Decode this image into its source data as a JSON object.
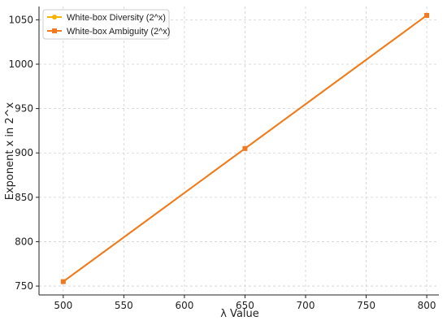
{
  "chart_data": {
    "type": "line",
    "title": "",
    "xlabel": "λ Value",
    "ylabel": "Exponent x in 2^x",
    "xlim": [
      480,
      810
    ],
    "ylim": [
      740,
      1065
    ],
    "xticks": [
      500,
      550,
      600,
      650,
      700,
      750,
      800
    ],
    "yticks": [
      750,
      800,
      850,
      900,
      950,
      1000,
      1050
    ],
    "grid": true,
    "legend_position": "top-left",
    "series": [
      {
        "name": "White-box Diversity (2^x)",
        "marker": "circle",
        "color": "#f5b400",
        "x": [
          500,
          650,
          800
        ],
        "y": [
          755,
          905,
          1055
        ]
      },
      {
        "name": "White-box Ambiguity (2^x)",
        "marker": "square",
        "color": "#f07a22",
        "x": [
          500,
          650,
          800
        ],
        "y": [
          755,
          905,
          1055
        ]
      }
    ]
  }
}
